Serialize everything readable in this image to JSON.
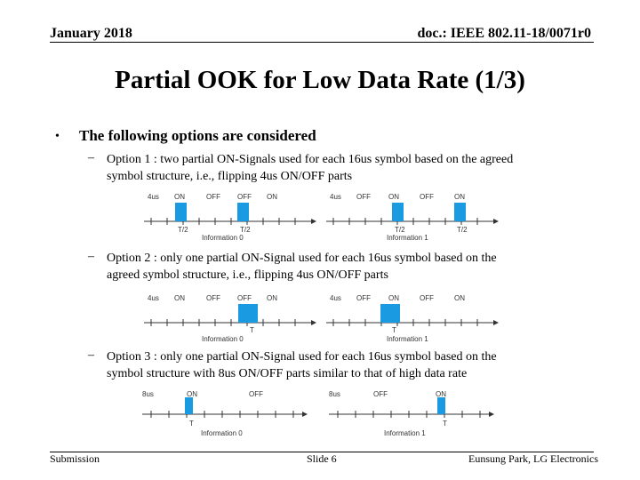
{
  "header": {
    "date": "January 2018",
    "doc": "doc.: IEEE 802.11-18/0071r0"
  },
  "title": "Partial OOK for Low Data Rate (1/3)",
  "bullet_symbol": "•",
  "lead": "The following options are considered",
  "dash_symbol": "–",
  "options": [
    {
      "line1": "Option 1 : two partial ON-Signals used for each 16us symbol based on the agreed",
      "line2": "symbol structure, i.e., flipping 4us ON/OFF parts"
    },
    {
      "line1": "Option 2 : only one partial ON-Signal used for each 16us symbol based on the",
      "line2": "agreed symbol structure, i.e., flipping 4us ON/OFF parts"
    },
    {
      "line1": "Option 3 : only one partial ON-Signal used for each 16us symbol based on the",
      "line2": "symbol structure with 8us ON/OFF parts similar to that of high data rate"
    }
  ],
  "diagrams": {
    "d1": {
      "left": {
        "labels": [
          "4us",
          "ON",
          "OFF",
          "OFF",
          "ON"
        ],
        "marks": [
          "T/2",
          "T/2"
        ],
        "caption": "Information 0"
      },
      "right": {
        "labels": [
          "4us",
          "OFF",
          "ON",
          "OFF",
          "ON"
        ],
        "marks": [
          "T/2",
          "T/2"
        ],
        "caption": "Information 1"
      }
    },
    "d2": {
      "left": {
        "labels": [
          "4us",
          "ON",
          "OFF",
          "OFF",
          "ON"
        ],
        "marks": [
          "T"
        ],
        "caption": "Information 0"
      },
      "right": {
        "labels": [
          "4us",
          "OFF",
          "ON",
          "OFF",
          "ON"
        ],
        "marks": [
          "T"
        ],
        "caption": "Information 1"
      }
    },
    "d3": {
      "left": {
        "labels": [
          "8us",
          "ON",
          "OFF"
        ],
        "marks": [
          "T"
        ],
        "caption": "Information 0"
      },
      "right": {
        "labels": [
          "8us",
          "OFF",
          "ON"
        ],
        "marks": [
          "T"
        ],
        "caption": "Information 1"
      }
    }
  },
  "footer": {
    "left": "Submission",
    "center": "Slide 6",
    "right": "Eunsung Park, LG Electronics"
  },
  "colors": {
    "pulse": "#1a9ae0",
    "axis": "#333333",
    "text": "#000000"
  }
}
